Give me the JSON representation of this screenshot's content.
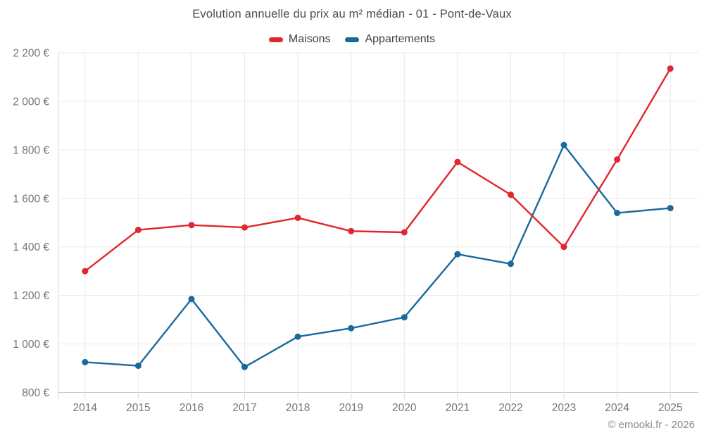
{
  "title": "Evolution annuelle du prix au m² médian - 01 - Pont-de-Vaux",
  "legend": {
    "items": [
      {
        "label": "Maisons",
        "color": "#e1262d"
      },
      {
        "label": "Appartements",
        "color": "#1a699e"
      }
    ]
  },
  "footer": {
    "copyright": "© emooki.fr - 2026"
  },
  "chart_data": {
    "type": "line",
    "title": "Evolution annuelle du prix au m² médian - 01 - Pont-de-Vaux",
    "categories": [
      "2014",
      "2015",
      "2016",
      "2017",
      "2018",
      "2019",
      "2020",
      "2021",
      "2022",
      "2023",
      "2024",
      "2025"
    ],
    "series": [
      {
        "name": "Maisons",
        "color": "#e1262d",
        "values": [
          1300,
          1470,
          1490,
          1480,
          1520,
          1465,
          1460,
          1750,
          1615,
          1400,
          1760,
          2135
        ]
      },
      {
        "name": "Appartements",
        "color": "#1a699e",
        "values": [
          925,
          910,
          1185,
          905,
          1030,
          1065,
          1110,
          1370,
          1330,
          1820,
          1540,
          1560
        ]
      }
    ],
    "xlabel": "",
    "ylabel": "",
    "ylim": [
      800,
      2200
    ],
    "y_ticks": [
      {
        "value": 800,
        "label": "800 €"
      },
      {
        "value": 1000,
        "label": "1 000 €"
      },
      {
        "value": 1200,
        "label": "1 200 €"
      },
      {
        "value": 1400,
        "label": "1 400 €"
      },
      {
        "value": 1600,
        "label": "1 600 €"
      },
      {
        "value": 1800,
        "label": "1 800 €"
      },
      {
        "value": 2000,
        "label": "2 000 €"
      },
      {
        "value": 2200,
        "label": "2 200 €"
      }
    ],
    "grid": true,
    "legend_position": "top",
    "unit": "€"
  },
  "colors": {
    "maisons": "#e1262d",
    "appartements": "#1a699e",
    "grid": "#e9e9e9",
    "axis": "#c9c9c9",
    "y_axis_line": "#dedede",
    "tick": "#d9d9d9",
    "tick_text": "#757575",
    "title_text": "#4c4c4c",
    "legend_text": "#3f3f3f",
    "copyright_text": "#8a8a8a",
    "background": "#ffffff"
  }
}
